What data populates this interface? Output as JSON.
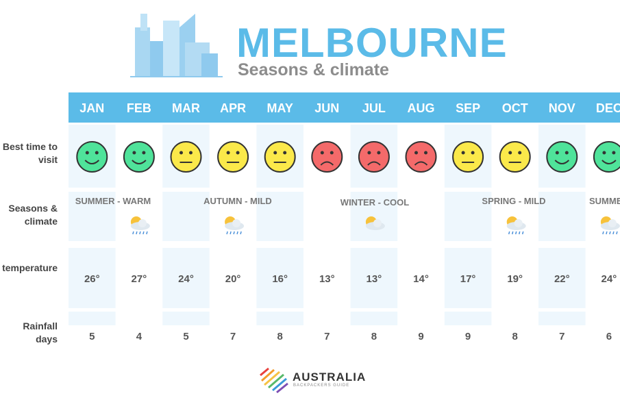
{
  "header": {
    "title": "MELBOURNE",
    "subtitle": "Seasons & climate"
  },
  "table": {
    "row_labels": [
      "Best time to visit",
      "Seasons & climate",
      "Daytime temperature",
      "Rainfall days"
    ],
    "months": [
      "JAN",
      "FEB",
      "MAR",
      "APR",
      "MAY",
      "JUN",
      "JUL",
      "AUG",
      "SEP",
      "OCT",
      "NOV",
      "DEC"
    ],
    "best_time": [
      "good",
      "good",
      "ok",
      "ok",
      "ok",
      "bad",
      "bad",
      "bad",
      "ok",
      "ok",
      "good",
      "good"
    ],
    "seasons": [
      "SUMMER - WARM",
      "AUTUMN - MILD",
      "WINTER - COOL",
      "SPRING - MILD",
      "SUMMER - WARM"
    ],
    "temperature": [
      "26°",
      "27°",
      "24°",
      "20°",
      "16°",
      "13°",
      "13°",
      "14°",
      "17°",
      "19°",
      "22°",
      "24°"
    ],
    "rainfall_days": [
      5,
      4,
      5,
      7,
      8,
      7,
      8,
      9,
      9,
      8,
      7,
      6
    ]
  },
  "footer": {
    "brand": "AUSTRALIA",
    "tagline": "BACKPACKERS GUIDE"
  }
}
